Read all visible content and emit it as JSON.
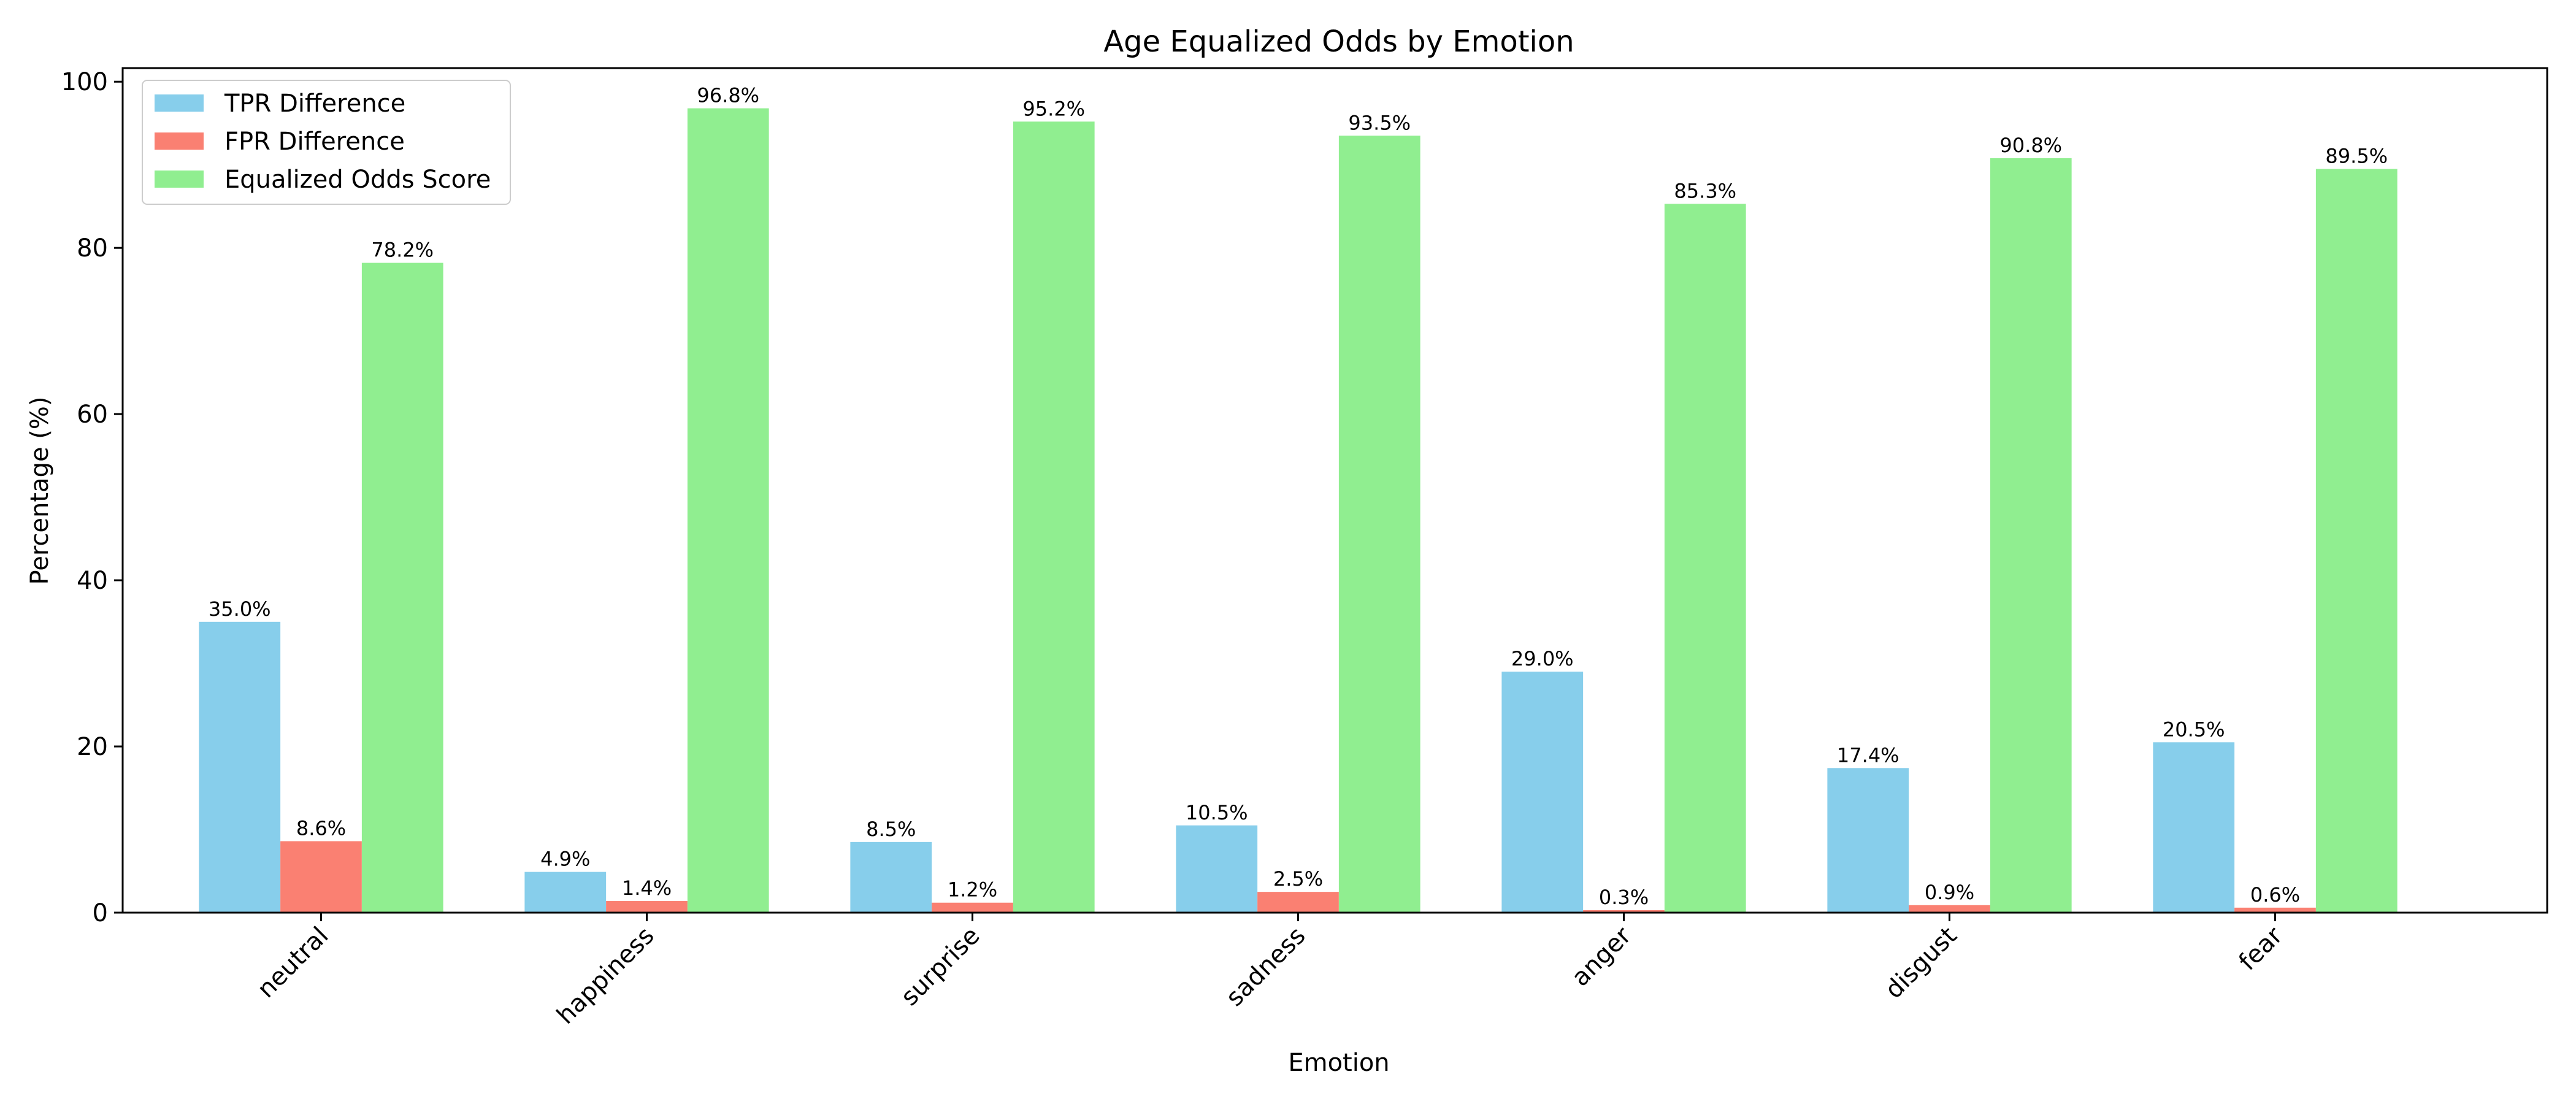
{
  "chart_data": {
    "type": "bar",
    "title": "Age Equalized Odds by Emotion",
    "xlabel": "Emotion",
    "ylabel": "Percentage (%)",
    "ylim": [
      0,
      101.64
    ],
    "yticks": [
      0,
      20,
      40,
      60,
      80,
      100
    ],
    "categories": [
      "neutral",
      "happiness",
      "surprise",
      "sadness",
      "anger",
      "disgust",
      "fear"
    ],
    "series": [
      {
        "name": "TPR Difference",
        "color": "#87ceeb",
        "values": [
          35.0,
          4.9,
          8.5,
          10.5,
          29.0,
          17.4,
          20.5
        ],
        "labels": [
          "35.0%",
          "4.9%",
          "8.5%",
          "10.5%",
          "29.0%",
          "17.4%",
          "20.5%"
        ]
      },
      {
        "name": "FPR Difference",
        "color": "#fa8072",
        "values": [
          8.6,
          1.4,
          1.2,
          2.5,
          0.3,
          0.9,
          0.6
        ],
        "labels": [
          "8.6%",
          "1.4%",
          "1.2%",
          "2.5%",
          "0.3%",
          "0.9%",
          "0.6%"
        ]
      },
      {
        "name": "Equalized Odds Score",
        "color": "#90ee90",
        "values": [
          78.2,
          96.8,
          95.2,
          93.5,
          85.3,
          90.8,
          89.5
        ],
        "labels": [
          "78.2%",
          "96.8%",
          "95.2%",
          "93.5%",
          "85.3%",
          "90.8%",
          "89.5%"
        ]
      }
    ],
    "legend_position": "top-left",
    "grid": false
  }
}
